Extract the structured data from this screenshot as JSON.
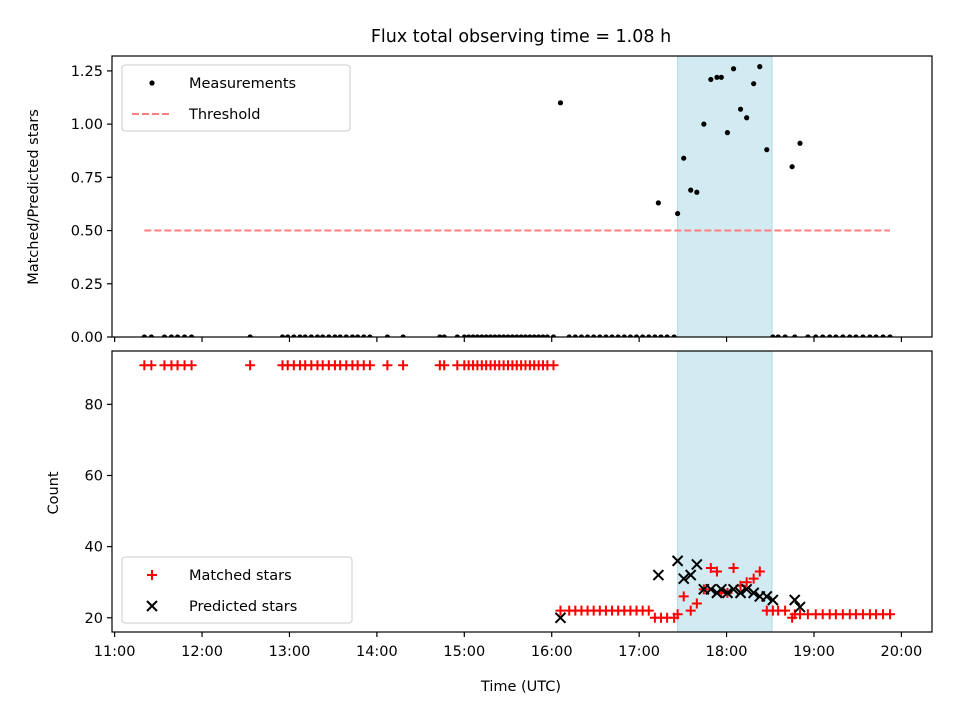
{
  "chart_data": {
    "title": "Flux total observing time = 1.08 h",
    "x_axis": {
      "label": "Time (UTC)",
      "range": [
        10.97,
        20.35
      ],
      "ticks": [
        11,
        12,
        13,
        14,
        15,
        16,
        17,
        18,
        19,
        20
      ],
      "tick_labels": [
        "11:00",
        "12:00",
        "13:00",
        "14:00",
        "15:00",
        "16:00",
        "17:00",
        "18:00",
        "19:00",
        "20:00"
      ]
    },
    "highlight_span": {
      "x_start": 17.44,
      "x_end": 18.52,
      "color": "#add8e6"
    },
    "panels": [
      {
        "type": "scatter",
        "ylabel": "Matched/Predicted stars",
        "ylim": [
          0,
          1.32
        ],
        "yticks": [
          0,
          0.25,
          0.5,
          0.75,
          1.0,
          1.25
        ],
        "ytick_labels": [
          "0.00",
          "0.25",
          "0.50",
          "0.75",
          "1.00",
          "1.25"
        ],
        "legend_position": "upper left",
        "series": [
          {
            "name": "Measurements",
            "marker": "dot",
            "color": "#000000",
            "x": [
              11.34,
              11.42,
              11.57,
              11.65,
              11.72,
              11.8,
              11.88,
              12.55,
              12.92,
              12.98,
              13.05,
              13.12,
              13.18,
              13.25,
              13.32,
              13.38,
              13.45,
              13.52,
              13.58,
              13.65,
              13.72,
              13.78,
              13.85,
              13.92,
              14.12,
              14.3,
              14.72,
              14.77,
              14.92,
              15.0,
              15.05,
              15.1,
              15.15,
              15.2,
              15.25,
              15.3,
              15.35,
              15.4,
              15.45,
              15.5,
              15.55,
              15.6,
              15.65,
              15.7,
              15.75,
              15.8,
              15.85,
              15.9,
              15.95,
              16.02,
              16.1,
              16.2,
              16.27,
              16.34,
              16.41,
              16.48,
              16.55,
              16.62,
              16.69,
              16.76,
              16.83,
              16.9,
              16.97,
              17.04,
              17.11,
              17.18,
              17.25,
              17.32,
              17.4,
              17.22,
              17.44,
              17.51,
              17.59,
              17.66,
              17.74,
              17.82,
              17.89,
              17.94,
              18.01,
              18.08,
              18.16,
              18.23,
              18.31,
              18.38,
              18.46,
              18.53,
              18.59,
              18.67,
              18.75,
              18.78,
              18.84,
              18.93,
              19.02,
              19.1,
              19.18,
              19.25,
              19.33,
              19.41,
              19.48,
              19.56,
              19.64,
              19.71,
              19.79,
              19.87
            ],
            "y": [
              0,
              0,
              0,
              0,
              0,
              0,
              0,
              0,
              0,
              0,
              0,
              0,
              0,
              0,
              0,
              0,
              0,
              0,
              0,
              0,
              0,
              0,
              0,
              0,
              0,
              0,
              0,
              0,
              0,
              0,
              0,
              0,
              0,
              0,
              0,
              0,
              0,
              0,
              0,
              0,
              0,
              0,
              0,
              0,
              0,
              0,
              0,
              0,
              0,
              0,
              1.1,
              0,
              0,
              0,
              0,
              0,
              0,
              0,
              0,
              0,
              0,
              0,
              0,
              0,
              0,
              0,
              0,
              0,
              0,
              0.63,
              0.58,
              0.84,
              0.69,
              0.68,
              1.0,
              1.21,
              1.22,
              1.22,
              0.96,
              1.26,
              1.07,
              1.03,
              1.19,
              1.27,
              0.88,
              0,
              0,
              0,
              0.8,
              0,
              0.91,
              0,
              0,
              0,
              0,
              0,
              0,
              0,
              0,
              0,
              0,
              0,
              0,
              0
            ]
          },
          {
            "name": "Threshold",
            "marker": "dashed-line",
            "color": "#ff7f7f",
            "x": [
              11.34,
              19.87
            ],
            "y": [
              0.5,
              0.5
            ]
          }
        ]
      },
      {
        "type": "scatter",
        "ylabel": "Count",
        "ylim": [
          16,
          95
        ],
        "yticks": [
          20,
          40,
          60,
          80
        ],
        "ytick_labels": [
          "20",
          "40",
          "60",
          "80"
        ],
        "legend_position": "lower left",
        "series": [
          {
            "name": "Matched stars",
            "marker": "plus",
            "color": "#ff0000",
            "x": [
              11.34,
              11.42,
              11.57,
              11.65,
              11.72,
              11.8,
              11.88,
              12.55,
              12.92,
              12.98,
              13.05,
              13.12,
              13.18,
              13.25,
              13.32,
              13.38,
              13.45,
              13.52,
              13.58,
              13.65,
              13.72,
              13.78,
              13.85,
              13.92,
              14.12,
              14.3,
              14.72,
              14.77,
              14.92,
              15.0,
              15.05,
              15.1,
              15.15,
              15.2,
              15.25,
              15.3,
              15.35,
              15.4,
              15.45,
              15.5,
              15.55,
              15.6,
              15.65,
              15.7,
              15.75,
              15.8,
              15.85,
              15.9,
              15.95,
              16.02,
              16.1,
              16.2,
              16.27,
              16.34,
              16.41,
              16.48,
              16.55,
              16.62,
              16.69,
              16.76,
              16.83,
              16.9,
              16.97,
              17.04,
              17.11,
              17.18,
              17.25,
              17.32,
              17.4,
              17.44,
              17.51,
              17.59,
              17.66,
              17.74,
              17.82,
              17.89,
              17.94,
              18.01,
              18.08,
              18.16,
              18.23,
              18.31,
              18.38,
              18.46,
              18.53,
              18.59,
              18.67,
              18.75,
              18.78,
              18.84,
              18.93,
              19.02,
              19.1,
              19.18,
              19.25,
              19.33,
              19.41,
              19.48,
              19.56,
              19.64,
              19.71,
              19.79,
              19.87
            ],
            "y": [
              91,
              91,
              91,
              91,
              91,
              91,
              91,
              91,
              91,
              91,
              91,
              91,
              91,
              91,
              91,
              91,
              91,
              91,
              91,
              91,
              91,
              91,
              91,
              91,
              91,
              91,
              91,
              91,
              91,
              91,
              91,
              91,
              91,
              91,
              91,
              91,
              91,
              91,
              91,
              91,
              91,
              91,
              91,
              91,
              91,
              91,
              91,
              91,
              91,
              91,
              22,
              22,
              22,
              22,
              22,
              22,
              22,
              22,
              22,
              22,
              22,
              22,
              22,
              22,
              22,
              20,
              20,
              20,
              20,
              21,
              26,
              22,
              24,
              28,
              34,
              33,
              27,
              27,
              34,
              29,
              30,
              31,
              33,
              22,
              22,
              22,
              22,
              20,
              21,
              21,
              21,
              21,
              21,
              21,
              21,
              21,
              21,
              21,
              21,
              21,
              21,
              21,
              21
            ]
          },
          {
            "name": "Predicted stars",
            "marker": "x",
            "color": "#000000",
            "x": [
              16.1,
              17.22,
              17.44,
              17.51,
              17.59,
              17.66,
              17.74,
              17.82,
              17.89,
              17.94,
              18.01,
              18.08,
              18.16,
              18.23,
              18.31,
              18.38,
              18.46,
              18.53,
              18.78,
              18.84
            ],
            "y": [
              20,
              32,
              36,
              31,
              32,
              35,
              28,
              28,
              27,
              28,
              27,
              28,
              27,
              28,
              27,
              26,
              26,
              25,
              25,
              23
            ]
          }
        ]
      }
    ]
  }
}
